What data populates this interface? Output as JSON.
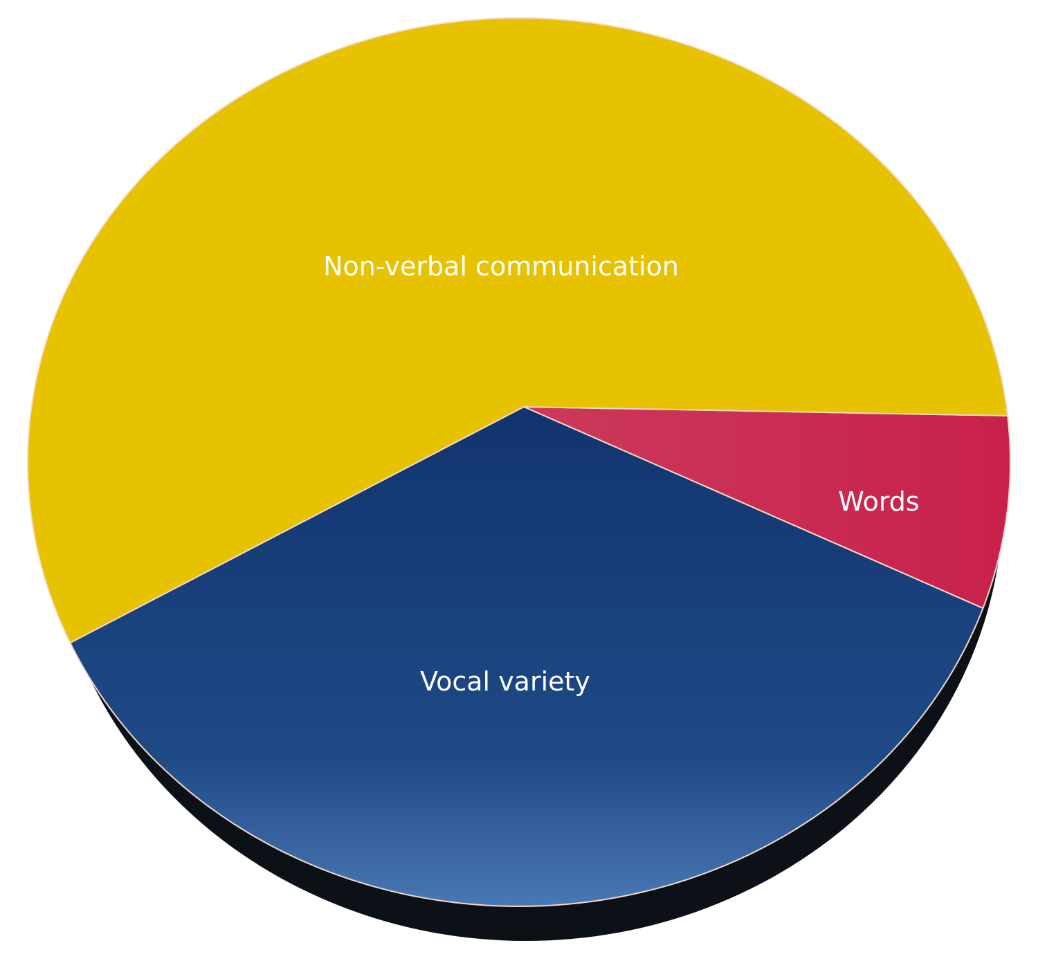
{
  "chart_data": {
    "type": "pie",
    "title": "",
    "slices": [
      {
        "label": "Non-verbal communication",
        "value": 55,
        "color": "#E6C200"
      },
      {
        "label": "Words",
        "value": 7,
        "color": "#CC3757"
      },
      {
        "label": "Vocal variety",
        "value": 38,
        "color": "#1A4280"
      }
    ],
    "style": "3d-tilted",
    "legend": "none",
    "shadow_color": "#0C1118"
  }
}
